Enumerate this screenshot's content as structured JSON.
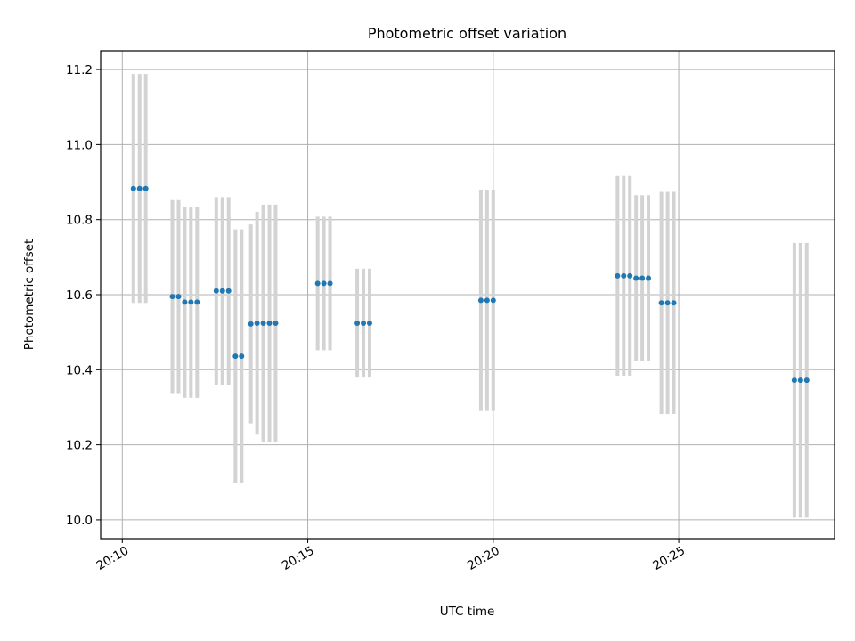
{
  "chart_data": {
    "type": "scatter",
    "title": "Photometric offset variation",
    "xlabel": "UTC time",
    "ylabel": "Photometric offset",
    "ylim": [
      9.95,
      11.25
    ],
    "xlim": [
      "20:09:25",
      "20:29:12"
    ],
    "grid": true,
    "x_ticks": [
      "20:10",
      "20:15",
      "20:20",
      "20:25"
    ],
    "y_ticks": [
      "10.0",
      "10.2",
      "10.4",
      "10.6",
      "10.8",
      "11.0",
      "11.2"
    ],
    "marker_color": "#1f77b4",
    "errorbar_color": "#d3d3d3",
    "points": [
      {
        "x": "20:10:18",
        "y": 10.883,
        "err": 0.305
      },
      {
        "x": "20:10:28",
        "y": 10.883,
        "err": 0.305
      },
      {
        "x": "20:10:38",
        "y": 10.883,
        "err": 0.305
      },
      {
        "x": "20:11:21",
        "y": 10.595,
        "err": 0.257
      },
      {
        "x": "20:11:31",
        "y": 10.595,
        "err": 0.257
      },
      {
        "x": "20:11:41",
        "y": 10.58,
        "err": 0.255
      },
      {
        "x": "20:11:51",
        "y": 10.58,
        "err": 0.255
      },
      {
        "x": "20:12:01",
        "y": 10.58,
        "err": 0.255
      },
      {
        "x": "20:12:32",
        "y": 10.61,
        "err": 0.25
      },
      {
        "x": "20:12:42",
        "y": 10.61,
        "err": 0.25
      },
      {
        "x": "20:12:52",
        "y": 10.61,
        "err": 0.25
      },
      {
        "x": "20:13:03",
        "y": 10.436,
        "err": 0.338
      },
      {
        "x": "20:13:13",
        "y": 10.436,
        "err": 0.338
      },
      {
        "x": "20:13:28",
        "y": 10.522,
        "err": 0.265
      },
      {
        "x": "20:13:38",
        "y": 10.524,
        "err": 0.297
      },
      {
        "x": "20:13:48",
        "y": 10.524,
        "err": 0.316
      },
      {
        "x": "20:13:58",
        "y": 10.524,
        "err": 0.316
      },
      {
        "x": "20:14:08",
        "y": 10.524,
        "err": 0.316
      },
      {
        "x": "20:15:16",
        "y": 10.63,
        "err": 0.178
      },
      {
        "x": "20:15:26",
        "y": 10.63,
        "err": 0.178
      },
      {
        "x": "20:15:36",
        "y": 10.63,
        "err": 0.178
      },
      {
        "x": "20:16:20",
        "y": 10.524,
        "err": 0.145
      },
      {
        "x": "20:16:30",
        "y": 10.524,
        "err": 0.145
      },
      {
        "x": "20:16:40",
        "y": 10.524,
        "err": 0.145
      },
      {
        "x": "20:19:40",
        "y": 10.585,
        "err": 0.295
      },
      {
        "x": "20:19:50",
        "y": 10.585,
        "err": 0.295
      },
      {
        "x": "20:20:00",
        "y": 10.585,
        "err": 0.295
      },
      {
        "x": "20:23:21",
        "y": 10.65,
        "err": 0.266
      },
      {
        "x": "20:23:31",
        "y": 10.65,
        "err": 0.266
      },
      {
        "x": "20:23:41",
        "y": 10.65,
        "err": 0.266
      },
      {
        "x": "20:23:51",
        "y": 10.644,
        "err": 0.221
      },
      {
        "x": "20:24:01",
        "y": 10.644,
        "err": 0.221
      },
      {
        "x": "20:24:11",
        "y": 10.644,
        "err": 0.221
      },
      {
        "x": "20:24:32",
        "y": 10.578,
        "err": 0.296
      },
      {
        "x": "20:24:42",
        "y": 10.578,
        "err": 0.296
      },
      {
        "x": "20:24:52",
        "y": 10.578,
        "err": 0.296
      },
      {
        "x": "20:28:07",
        "y": 10.372,
        "err": 0.366
      },
      {
        "x": "20:28:17",
        "y": 10.372,
        "err": 0.366
      },
      {
        "x": "20:28:27",
        "y": 10.372,
        "err": 0.366
      }
    ]
  }
}
